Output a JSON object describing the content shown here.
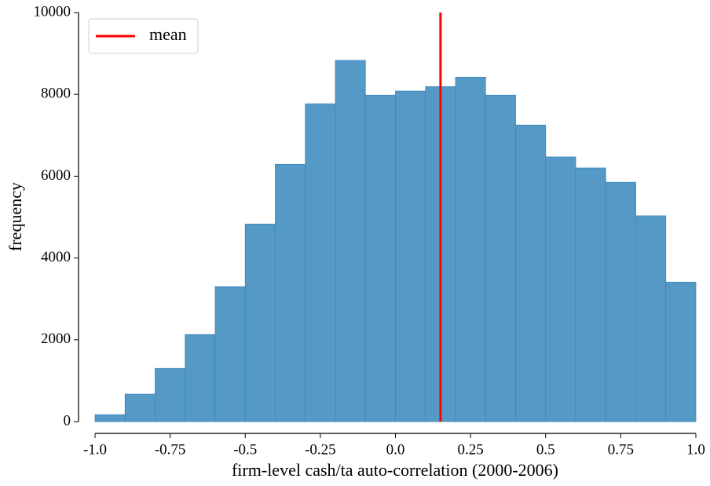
{
  "chart_data": {
    "type": "histogram",
    "xlabel": "firm-level cash/ta auto-correlation (2000-2006)",
    "ylabel": "frequency",
    "bins": [
      -1,
      -0.9,
      -0.8,
      -0.7,
      -0.6,
      -0.5,
      -0.4,
      -0.3,
      -0.2,
      -0.1,
      0,
      0.1,
      0.2,
      0.3,
      0.4,
      0.5,
      0.6,
      0.7,
      0.8,
      0.9,
      1
    ],
    "values": [
      170,
      670,
      1300,
      2130,
      3300,
      4830,
      6290,
      7770,
      8830,
      7980,
      8080,
      8190,
      8420,
      7980,
      7250,
      6470,
      6200,
      5850,
      5030,
      3410
    ],
    "color": "#5599c7",
    "mean": {
      "name": "mean",
      "value": 0.15,
      "color": "#ff0000"
    },
    "xlim": [
      -1,
      1
    ],
    "xticks": [
      {
        "value": -1,
        "label": "-1.0"
      },
      {
        "value": -0.75,
        "label": "-0.75"
      },
      -0.5,
      {
        "value": -0.25,
        "label": "-0.25"
      },
      {
        "value": 0,
        "label": "0.0"
      },
      0.25,
      0.5,
      0.75,
      {
        "value": 1,
        "label": "1.0"
      }
    ],
    "ylim": [
      0,
      10000
    ],
    "yticks": [
      0,
      2000,
      4000,
      6000,
      8000,
      10000
    ],
    "legend": "upper left"
  }
}
